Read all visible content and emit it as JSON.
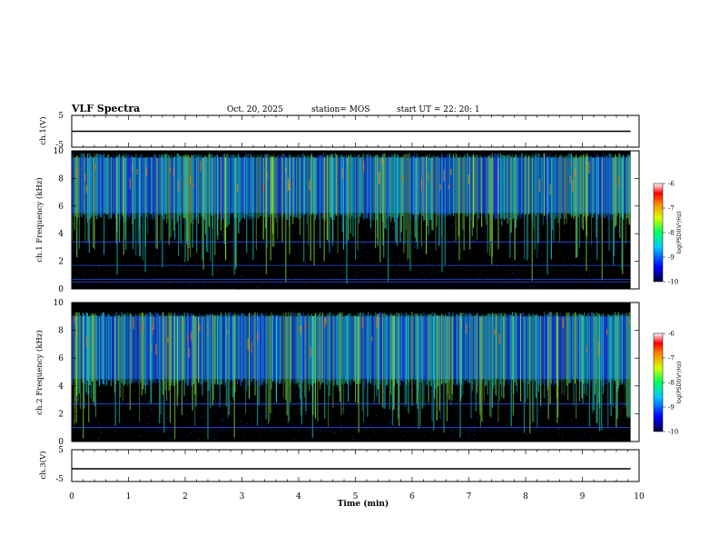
{
  "header": {
    "title": "VLF Spectra",
    "date": "Oct. 20, 2025",
    "station": "station= MOS",
    "start": "start  UT  =   22: 20: 1"
  },
  "chart_data": [
    {
      "type": "line",
      "name": "ch1-voltage",
      "ylabel": "ch.1(V)",
      "ylim": [
        -5,
        5
      ],
      "yticks": [
        "5",
        "-5"
      ],
      "x": [
        0,
        9.85
      ],
      "values": [
        0,
        0
      ]
    },
    {
      "type": "heatmap",
      "name": "ch1-spectrogram",
      "ylabel": "ch.1 Frequency (kHz)",
      "ylim": [
        0,
        10
      ],
      "xlim": [
        0,
        10
      ],
      "data_xlim": [
        0,
        9.85
      ],
      "yticks": [
        "0",
        "2",
        "4",
        "6",
        "8",
        "10"
      ],
      "band_khz": [
        5.5,
        9.5
      ],
      "lines_khz": [
        0.5,
        0.7,
        1.7,
        3.4
      ],
      "colorbar": {
        "label": "log(PSD)(V²/Hz)",
        "ticks": [
          "-6",
          "-7",
          "-8",
          "-9",
          "-10"
        ],
        "range": [
          -10,
          -6
        ]
      }
    },
    {
      "type": "heatmap",
      "name": "ch2-spectrogram",
      "ylabel": "ch.2 Frequency (kHz)",
      "ylim": [
        0,
        10
      ],
      "xlim": [
        0,
        10
      ],
      "data_xlim": [
        0,
        9.85
      ],
      "yticks": [
        "0",
        "2",
        "4",
        "6",
        "8",
        "10"
      ],
      "band_khz": [
        4.5,
        9.0
      ],
      "lines_khz": [
        1.0,
        2.7
      ],
      "colorbar": {
        "label": "log(PSD)(V²/Hz)",
        "ticks": [
          "-6",
          "-7",
          "-8",
          "-9",
          "-10"
        ],
        "range": [
          -10,
          -6
        ]
      }
    },
    {
      "type": "line",
      "name": "ch3-voltage",
      "ylabel": "ch.3(V)",
      "ylim": [
        -5,
        5
      ],
      "yticks": [
        "5",
        "-5"
      ],
      "x": [
        0,
        9.85
      ],
      "values": [
        -1,
        -1
      ]
    }
  ],
  "xaxis": {
    "label": "Time (min)",
    "ticks": [
      "0",
      "1",
      "2",
      "3",
      "4",
      "5",
      "6",
      "7",
      "8",
      "9",
      "10"
    ]
  },
  "colors": {
    "background": "#000000",
    "band_low": "#1e44ff",
    "band_mid": "#19d2c8",
    "band_high": "#8ef034",
    "peak": "#f07818",
    "line": "#2a5cff"
  }
}
